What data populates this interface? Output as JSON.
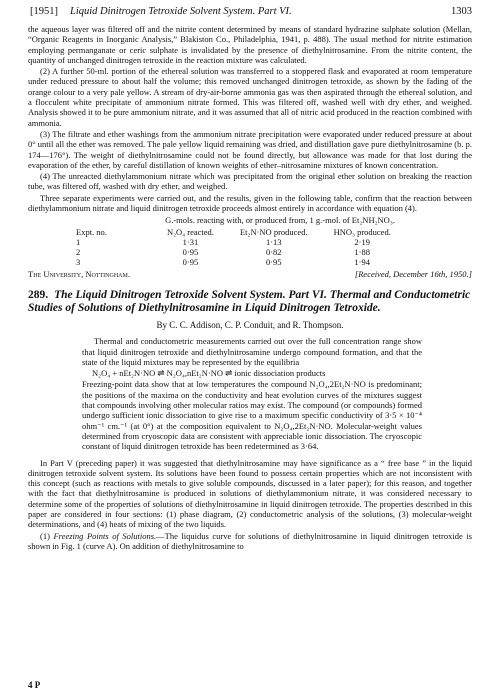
{
  "header": {
    "year": "[1951]",
    "title": "Liquid Dinitrogen Tetroxide Solvent System. Part VI.",
    "page": "1303"
  },
  "paragraphs": [
    "the aqueous layer was filtered off and the nitrite content determined by means of standard hydrazine sulphate solution (Mellan, “Organic Reagents in Inorganic Analysis,” Blakiston Co., Philadelphia, 1941, p. 488). The usual method for nitrite estimation employing permanganate or ceric sulphate is invalidated by the presence of diethylnitrosamine. From the nitrite content, the quantity of unchanged dinitrogen tetroxide in the reaction mixture was calculated.",
    "(2) A further 50-ml. portion of the ethereal solution was transferred to a stoppered flask and evaporated at room temperature under reduced pressure to about half the volume; this removed unchanged dinitrogen tetroxide, as shown by the fading of the orange colour to a very pale yellow. A stream of dry-air-borne ammonia gas was then aspirated through the ethereal solution, and a flocculent white precipitate of ammonium nitrate formed. This was filtered off, washed well with dry ether, and weighed. Analysis showed it to be pure ammonium nitrate, and it was assumed that all of nitric acid produced in the reaction combined with ammonia.",
    "(3) The filtrate and ether washings from the ammonium nitrate precipitation were evaporated under reduced pressure at about 0° until all the ether was removed. The pale yellow liquid remaining was dried, and distillation gave pure diethylnitrosamine (b. p. 174—176°). The weight of diethylnitrosamine could not be found directly, but allowance was made for that lost during the evaporation of the ether, by careful distillation of known weights of ether–nitrosamine mixtures of known concentration.",
    "(4) The unreacted diethylammonium nitrate which was precipitated from the original ether solution on breaking the reaction tube, was filtered off, washed with dry ether, and weighed.",
    "Three separate experiments were carried out, and the results, given in the following table, confirm that the reaction between diethylammonium nitrate and liquid dinitrogen tetroxide proceeds almost entirely in accordance with equation (4)."
  ],
  "table": {
    "caption": "G.-mols. reacting with, or produced from, 1 g.-mol. of Et₂NH₂NO₃.",
    "headers": [
      "Expt. no.",
      "N₂O₄ reacted.",
      "Et₂N·NO produced.",
      "HNO₃ produced."
    ],
    "rows": [
      [
        "1",
        "1·31",
        "1·13",
        "2·19"
      ],
      [
        "2",
        "0·95",
        "0·82",
        "1·88"
      ],
      [
        "3",
        "0·95",
        "0·95",
        "1·94"
      ]
    ]
  },
  "affiliation": "The University, Nottingham.",
  "received": "[Received, December 16th, 1950.]",
  "article": {
    "number": "289.",
    "title": "The Liquid Dinitrogen Tetroxide Solvent System. Part VI. Thermal and Conductometric Studies of Solutions of Diethylnitrosamine in Liquid Dinitrogen Tetroxide.",
    "authors": "By C. C. Addison, C. P. Conduit, and R. Thompson.",
    "abstract_1": "Thermal and conductometric measurements carried out over the full concentration range show that liquid dinitrogen tetroxide and diethylnitrosamine undergo compound formation, and that the state of the liquid mixtures may be represented by the equilibria",
    "equation": "N₂O₄ + nEt₂N·NO ⇌ N₂O₄,nEt₂N·NO ⇌ ionic dissociation products",
    "abstract_2": "Freezing-point data show that at low temperatures the compound N₂O₄,2Et₂N·NO is predominant; the positions of the maxima on the conductivity and heat evolution curves of the mixtures suggest that compounds involving other molecular ratios may exist. The compound (or compounds) formed undergo sufficient ionic dissociation to give rise to a maximum specific conductivity of 3·5 × 10⁻⁴ ohm⁻¹ cm.⁻¹ (at 0°) at the composition equivalent to N₂O₄,2Et₂N·NO. Molecular-weight values determined from cryoscopic data are consistent with appreciable ionic dissociation. The cryoscopic constant of liquid dinitrogen tetroxide has been redetermined as 3·64."
  },
  "body": "In Part V (preceding paper) it was suggested that diethylnitrosamine may have significance as a “ free base ” in the liquid dinitrogen tetroxide solvent system. Its solutions have been found to possess certain properties which are not inconsistent with this concept (such as reactions with metals to give soluble compounds, discussed in a later paper); for this reason, and together with the fact that diethylnitrosamine is produced in solutions of diethylammonium nitrate, it was considered necessary to determine some of the properties of solutions of diethylnitrosamine in liquid dinitrogen tetroxide. The properties described in this paper are considered in four sections: (1) phase diagram, (2) conductometric analysis of the solutions, (3) molecular-weight determinations, and (4) heats of mixing of the two liquids.",
  "section": {
    "label": "(1)",
    "heading": "Freezing Points of Solutions.",
    "text": "—The liquidus curve for solutions of diethylnitrosamine in liquid dinitrogen tetroxide is shown in Fig. 1 (curve A). On addition of diethylnitrosamine to"
  },
  "footer": "4 P"
}
